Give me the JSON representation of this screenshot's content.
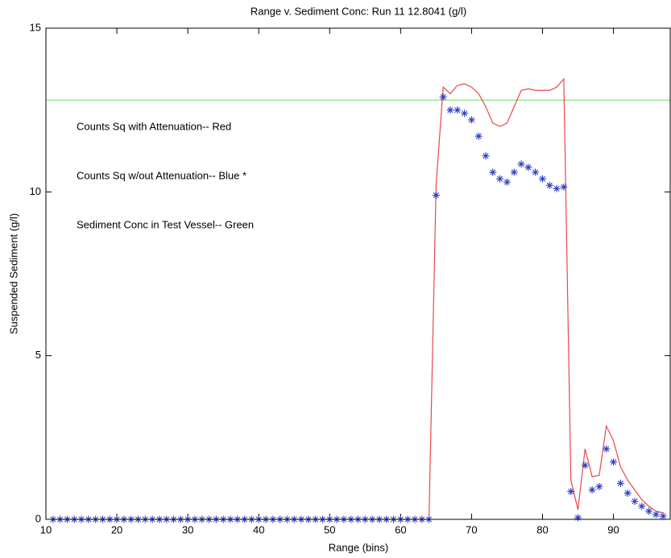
{
  "chart_data": {
    "type": "line",
    "title": "Range v. Sediment Conc: Run 11    12.8041 (g/l)",
    "x_label": "Range (bins)",
    "y_label": "Suspended Sediment (g/l)",
    "annotations": [
      "Counts Sq with Attenuation-- Red",
      "Counts Sq w/out Attenuation-- Blue *",
      "Sediment Conc in Test Vessel-- Green"
    ],
    "x": [
      11,
      12,
      13,
      14,
      15,
      16,
      17,
      18,
      19,
      20,
      21,
      22,
      23,
      24,
      25,
      26,
      27,
      28,
      29,
      30,
      31,
      32,
      33,
      34,
      35,
      36,
      37,
      38,
      39,
      40,
      41,
      42,
      43,
      44,
      45,
      46,
      47,
      48,
      49,
      50,
      51,
      52,
      53,
      54,
      55,
      56,
      57,
      58,
      59,
      60,
      61,
      62,
      63,
      64,
      65,
      66,
      67,
      68,
      69,
      70,
      71,
      72,
      73,
      74,
      75,
      76,
      77,
      78,
      79,
      80,
      81,
      82,
      83,
      84,
      85,
      86,
      87,
      88,
      89,
      90,
      91,
      92,
      93,
      94,
      95,
      96,
      97
    ],
    "series": [
      {
        "color": "#e8474a",
        "style": "line",
        "values": [
          0,
          0,
          0,
          0,
          0,
          0,
          0,
          0,
          0,
          0,
          0,
          0,
          0,
          0,
          0,
          0,
          0,
          0,
          0,
          0,
          0,
          0,
          0,
          0,
          0,
          0,
          0,
          0,
          0,
          0,
          0,
          0,
          0,
          0,
          0,
          0,
          0,
          0,
          0,
          0,
          0,
          0,
          0,
          0,
          0,
          0,
          0,
          0,
          0,
          0,
          0,
          0,
          0,
          0,
          10.2,
          13.2,
          13.0,
          13.25,
          13.3,
          13.2,
          13.0,
          12.6,
          12.1,
          12.0,
          12.1,
          12.6,
          13.1,
          13.15,
          13.1,
          13.1,
          13.1,
          13.2,
          13.45,
          1.2,
          0.3,
          2.15,
          1.3,
          1.35,
          2.85,
          2.4,
          1.6,
          1.2,
          0.9,
          0.6,
          0.4,
          0.25,
          0.2
        ]
      },
      {
        "color": "#2f3fc4",
        "style": "star",
        "values": [
          0,
          0,
          0,
          0,
          0,
          0,
          0,
          0,
          0,
          0,
          0,
          0,
          0,
          0,
          0,
          0,
          0,
          0,
          0,
          0,
          0,
          0,
          0,
          0,
          0,
          0,
          0,
          0,
          0,
          0,
          0,
          0,
          0,
          0,
          0,
          0,
          0,
          0,
          0,
          0,
          0,
          0,
          0,
          0,
          0,
          0,
          0,
          0,
          0,
          0,
          0,
          0,
          0,
          0,
          9.9,
          12.9,
          12.5,
          12.5,
          12.4,
          12.2,
          11.7,
          11.1,
          10.6,
          10.4,
          10.3,
          10.6,
          10.85,
          10.75,
          10.6,
          10.4,
          10.2,
          10.1,
          10.15,
          0.85,
          0.05,
          1.65,
          0.9,
          1.0,
          2.15,
          1.75,
          1.1,
          0.8,
          0.55,
          0.4,
          0.25,
          0.15,
          0.1
        ]
      }
    ],
    "hline": {
      "value": 12.8041,
      "color": "#7be07b"
    },
    "xlim": [
      10,
      98
    ],
    "xticks": [
      10,
      20,
      30,
      40,
      50,
      60,
      70,
      80,
      90
    ],
    "ylim": [
      0,
      15
    ],
    "yticks": [
      0,
      5,
      10,
      15
    ]
  }
}
